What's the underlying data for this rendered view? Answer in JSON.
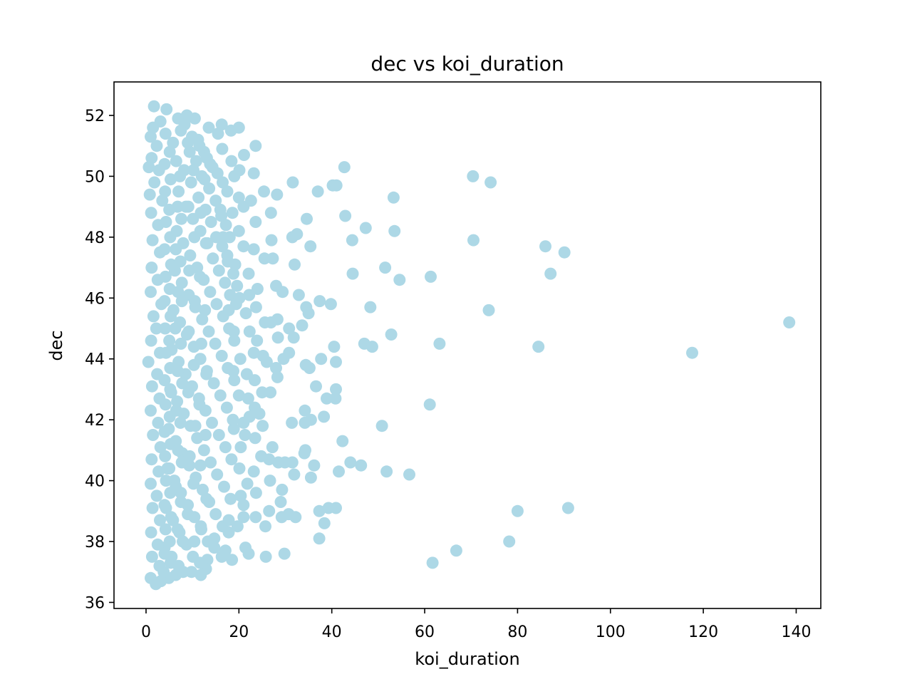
{
  "chart_data": {
    "type": "scatter",
    "title": "dec vs koi_duration",
    "xlabel": "koi_duration",
    "ylabel": "dec",
    "xlim": [
      -6.9,
      145.3
    ],
    "ylim": [
      35.8,
      53.1
    ],
    "xticks": [
      0,
      20,
      40,
      60,
      80,
      100,
      120,
      140
    ],
    "yticks": [
      36,
      38,
      40,
      42,
      44,
      46,
      48,
      50,
      52
    ],
    "grid": false,
    "legend": "none",
    "marker_color": "#add8e6",
    "points": [
      [
        1.7,
        52.3
      ],
      [
        4.4,
        52.2
      ],
      [
        8.8,
        52.0
      ],
      [
        10.5,
        51.9
      ],
      [
        13.5,
        51.6
      ],
      [
        16.3,
        51.7
      ],
      [
        20.0,
        51.6
      ],
      [
        18.3,
        51.5
      ],
      [
        15.5,
        51.4
      ],
      [
        3.1,
        51.8
      ],
      [
        1.0,
        51.3
      ],
      [
        0.6,
        50.3
      ],
      [
        0.8,
        49.4
      ],
      [
        23.6,
        51.0
      ],
      [
        21.1,
        50.7
      ],
      [
        16.4,
        50.9
      ],
      [
        18.4,
        50.5
      ],
      [
        20.1,
        50.2
      ],
      [
        23.2,
        50.1
      ],
      [
        19.0,
        50.0
      ],
      [
        13.8,
        50.4
      ],
      [
        42.7,
        50.3
      ],
      [
        31.6,
        49.8
      ],
      [
        37.0,
        49.5
      ],
      [
        40.2,
        49.7
      ],
      [
        41.0,
        49.7
      ],
      [
        53.3,
        49.3
      ],
      [
        70.4,
        50.0
      ],
      [
        74.2,
        49.8
      ],
      [
        28.2,
        49.4
      ],
      [
        25.4,
        49.5
      ],
      [
        22.6,
        49.2
      ],
      [
        20.0,
        49.3
      ],
      [
        21.0,
        49.0
      ],
      [
        18.6,
        48.8
      ],
      [
        16.0,
        48.9
      ],
      [
        26.9,
        48.8
      ],
      [
        34.6,
        48.6
      ],
      [
        42.9,
        48.7
      ],
      [
        47.3,
        48.3
      ],
      [
        53.5,
        48.2
      ],
      [
        23.6,
        48.5
      ],
      [
        20.0,
        48.2
      ],
      [
        16.6,
        48.0
      ],
      [
        27.0,
        47.9
      ],
      [
        31.5,
        48.0
      ],
      [
        32.5,
        48.1
      ],
      [
        35.4,
        47.7
      ],
      [
        44.4,
        47.9
      ],
      [
        70.5,
        47.9
      ],
      [
        86.0,
        47.7
      ],
      [
        90.1,
        47.5
      ],
      [
        21.0,
        47.7
      ],
      [
        23.2,
        47.6
      ],
      [
        25.5,
        47.3
      ],
      [
        27.3,
        47.3
      ],
      [
        32.0,
        47.1
      ],
      [
        17.5,
        47.4
      ],
      [
        19.2,
        47.1
      ],
      [
        22.1,
        46.8
      ],
      [
        44.5,
        46.8
      ],
      [
        51.5,
        47.0
      ],
      [
        54.6,
        46.6
      ],
      [
        61.3,
        46.7
      ],
      [
        87.1,
        46.8
      ],
      [
        28.0,
        46.4
      ],
      [
        29.4,
        46.2
      ],
      [
        24.0,
        46.3
      ],
      [
        22.2,
        46.1
      ],
      [
        20.1,
        46.0
      ],
      [
        32.9,
        46.1
      ],
      [
        37.4,
        45.9
      ],
      [
        34.5,
        45.7
      ],
      [
        39.8,
        45.8
      ],
      [
        48.3,
        45.7
      ],
      [
        35.0,
        45.5
      ],
      [
        28.3,
        45.3
      ],
      [
        23.7,
        45.7
      ],
      [
        21.5,
        45.5
      ],
      [
        17.8,
        45.6
      ],
      [
        73.8,
        45.6
      ],
      [
        138.5,
        45.2
      ],
      [
        25.6,
        45.2
      ],
      [
        26.9,
        45.2
      ],
      [
        33.6,
        45.1
      ],
      [
        30.8,
        45.0
      ],
      [
        18.9,
        44.9
      ],
      [
        22.3,
        44.9
      ],
      [
        23.9,
        44.6
      ],
      [
        28.4,
        44.7
      ],
      [
        31.8,
        44.7
      ],
      [
        52.8,
        44.8
      ],
      [
        47.0,
        44.5
      ],
      [
        48.7,
        44.4
      ],
      [
        63.2,
        44.5
      ],
      [
        84.5,
        44.4
      ],
      [
        117.6,
        44.2
      ],
      [
        40.5,
        44.4
      ],
      [
        30.8,
        44.2
      ],
      [
        29.6,
        44.0
      ],
      [
        25.2,
        44.1
      ],
      [
        26.0,
        43.9
      ],
      [
        23.2,
        44.2
      ],
      [
        20.3,
        44.0
      ],
      [
        37.7,
        44.0
      ],
      [
        40.9,
        43.9
      ],
      [
        34.4,
        43.8
      ],
      [
        35.2,
        43.7
      ],
      [
        28.0,
        43.7
      ],
      [
        28.3,
        43.4
      ],
      [
        21.7,
        43.5
      ],
      [
        23.4,
        43.3
      ],
      [
        18.8,
        43.6
      ],
      [
        36.6,
        43.1
      ],
      [
        40.9,
        43.0
      ],
      [
        25.0,
        42.9
      ],
      [
        26.8,
        42.9
      ],
      [
        20.0,
        42.8
      ],
      [
        22.0,
        42.7
      ],
      [
        38.9,
        42.7
      ],
      [
        40.8,
        42.7
      ],
      [
        61.1,
        42.5
      ],
      [
        23.4,
        42.4
      ],
      [
        34.2,
        42.3
      ],
      [
        24.4,
        42.2
      ],
      [
        38.3,
        42.1
      ],
      [
        22.3,
        42.1
      ],
      [
        21.0,
        41.9
      ],
      [
        31.4,
        41.9
      ],
      [
        34.2,
        41.9
      ],
      [
        35.5,
        42.0
      ],
      [
        50.8,
        41.8
      ],
      [
        25.1,
        41.8
      ],
      [
        18.9,
        41.7
      ],
      [
        42.3,
        41.3
      ],
      [
        21.3,
        41.5
      ],
      [
        23.5,
        41.4
      ],
      [
        27.2,
        41.1
      ],
      [
        20.4,
        41.1
      ],
      [
        34.1,
        40.9
      ],
      [
        34.3,
        41.0
      ],
      [
        24.8,
        40.8
      ],
      [
        26.5,
        40.7
      ],
      [
        28.5,
        40.6
      ],
      [
        29.9,
        40.6
      ],
      [
        31.5,
        40.6
      ],
      [
        44.0,
        40.6
      ],
      [
        46.3,
        40.5
      ],
      [
        36.2,
        40.5
      ],
      [
        20.1,
        40.4
      ],
      [
        23.2,
        40.3
      ],
      [
        41.5,
        40.3
      ],
      [
        51.8,
        40.3
      ],
      [
        56.7,
        40.2
      ],
      [
        31.9,
        40.2
      ],
      [
        35.5,
        40.1
      ],
      [
        26.7,
        40.0
      ],
      [
        21.8,
        39.9
      ],
      [
        23.7,
        39.6
      ],
      [
        29.3,
        39.7
      ],
      [
        20.4,
        39.5
      ],
      [
        29.0,
        39.3
      ],
      [
        21.0,
        39.2
      ],
      [
        80.0,
        39.0
      ],
      [
        90.9,
        39.1
      ],
      [
        39.3,
        39.1
      ],
      [
        40.9,
        39.1
      ],
      [
        37.3,
        39.0
      ],
      [
        26.5,
        39.0
      ],
      [
        30.7,
        38.9
      ],
      [
        32.2,
        38.8
      ],
      [
        29.2,
        38.8
      ],
      [
        23.6,
        38.8
      ],
      [
        21.0,
        38.8
      ],
      [
        38.4,
        38.6
      ],
      [
        25.7,
        38.5
      ],
      [
        19.7,
        38.5
      ],
      [
        17.8,
        38.3
      ],
      [
        37.3,
        38.1
      ],
      [
        78.2,
        38.0
      ],
      [
        14.7,
        38.1
      ],
      [
        21.4,
        37.8
      ],
      [
        66.8,
        37.7
      ],
      [
        61.7,
        37.3
      ],
      [
        17.1,
        37.7
      ],
      [
        22.1,
        37.6
      ],
      [
        25.8,
        37.5
      ],
      [
        29.8,
        37.6
      ],
      [
        16.3,
        37.5
      ],
      [
        18.5,
        37.4
      ],
      [
        13.2,
        37.4
      ],
      [
        12.9,
        37.1
      ],
      [
        11.8,
        36.9
      ],
      [
        9.8,
        37.0
      ],
      [
        8.0,
        37.0
      ],
      [
        6.4,
        36.9
      ],
      [
        4.9,
        36.8
      ],
      [
        3.2,
        36.7
      ],
      [
        2.1,
        36.6
      ],
      [
        1.0,
        36.8
      ],
      [
        6.9,
        51.9
      ],
      [
        8.3,
        51.7
      ],
      [
        9.9,
        51.3
      ],
      [
        11.2,
        51.2
      ],
      [
        12.5,
        50.8
      ],
      [
        13.1,
        50.6
      ],
      [
        14.3,
        50.3
      ],
      [
        15.4,
        50.1
      ],
      [
        16.5,
        49.8
      ],
      [
        17.5,
        49.5
      ],
      [
        7.5,
        51.5
      ],
      [
        5.8,
        51.1
      ],
      [
        9.4,
        50.8
      ],
      [
        10.8,
        50.5
      ],
      [
        12.0,
        50.0
      ],
      [
        13.6,
        49.6
      ],
      [
        15.0,
        49.2
      ],
      [
        16.2,
        48.7
      ],
      [
        17.2,
        48.4
      ],
      [
        18.0,
        48.0
      ],
      [
        8.2,
        50.2
      ],
      [
        9.7,
        49.8
      ],
      [
        11.3,
        49.3
      ],
      [
        12.8,
        48.9
      ],
      [
        14.0,
        48.5
      ],
      [
        15.1,
        48.0
      ],
      [
        16.4,
        47.7
      ],
      [
        17.6,
        47.2
      ],
      [
        18.8,
        46.8
      ],
      [
        19.6,
        46.4
      ],
      [
        7.0,
        49.5
      ],
      [
        8.6,
        49.0
      ],
      [
        10.1,
        48.6
      ],
      [
        11.7,
        48.2
      ],
      [
        13.2,
        47.8
      ],
      [
        14.4,
        47.3
      ],
      [
        15.7,
        46.9
      ],
      [
        17.0,
        46.5
      ],
      [
        18.1,
        46.1
      ],
      [
        19.4,
        45.8
      ],
      [
        6.6,
        48.2
      ],
      [
        8.0,
        47.8
      ],
      [
        9.5,
        47.4
      ],
      [
        11.0,
        47.0
      ],
      [
        12.4,
        46.6
      ],
      [
        13.8,
        46.2
      ],
      [
        15.2,
        45.8
      ],
      [
        16.6,
        45.4
      ],
      [
        17.9,
        45.0
      ],
      [
        19.0,
        44.6
      ],
      [
        6.2,
        46.9
      ],
      [
        7.7,
        46.5
      ],
      [
        9.2,
        46.1
      ],
      [
        10.6,
        45.7
      ],
      [
        12.1,
        45.3
      ],
      [
        13.5,
        44.9
      ],
      [
        14.9,
        44.5
      ],
      [
        16.3,
        44.1
      ],
      [
        17.6,
        43.7
      ],
      [
        19.0,
        43.3
      ],
      [
        5.9,
        45.6
      ],
      [
        7.3,
        45.2
      ],
      [
        8.8,
        44.8
      ],
      [
        10.3,
        44.4
      ],
      [
        11.7,
        44.0
      ],
      [
        13.1,
        43.6
      ],
      [
        14.6,
        43.2
      ],
      [
        16.0,
        42.8
      ],
      [
        17.4,
        42.4
      ],
      [
        18.7,
        42.0
      ],
      [
        5.5,
        44.3
      ],
      [
        7.0,
        43.9
      ],
      [
        8.5,
        43.5
      ],
      [
        9.9,
        43.1
      ],
      [
        11.4,
        42.7
      ],
      [
        12.8,
        42.3
      ],
      [
        14.2,
        41.9
      ],
      [
        15.7,
        41.5
      ],
      [
        17.1,
        41.1
      ],
      [
        18.4,
        40.7
      ],
      [
        5.2,
        43.0
      ],
      [
        6.7,
        42.6
      ],
      [
        8.1,
        42.2
      ],
      [
        9.6,
        41.8
      ],
      [
        11.0,
        41.4
      ],
      [
        12.5,
        41.0
      ],
      [
        13.9,
        40.6
      ],
      [
        15.3,
        40.2
      ],
      [
        16.8,
        39.8
      ],
      [
        18.2,
        39.4
      ],
      [
        4.9,
        41.7
      ],
      [
        6.4,
        41.3
      ],
      [
        7.8,
        40.9
      ],
      [
        9.3,
        40.5
      ],
      [
        10.7,
        40.1
      ],
      [
        12.2,
        39.7
      ],
      [
        13.6,
        39.3
      ],
      [
        15.0,
        38.9
      ],
      [
        16.5,
        38.5
      ],
      [
        17.8,
        38.7
      ],
      [
        4.6,
        40.4
      ],
      [
        6.1,
        40.0
      ],
      [
        7.5,
        39.6
      ],
      [
        9.0,
        39.2
      ],
      [
        10.4,
        38.8
      ],
      [
        11.9,
        38.4
      ],
      [
        13.3,
        38.0
      ],
      [
        14.7,
        37.8
      ],
      [
        4.3,
        39.1
      ],
      [
        5.8,
        38.7
      ],
      [
        7.2,
        38.3
      ],
      [
        8.7,
        37.9
      ],
      [
        10.1,
        37.5
      ],
      [
        11.6,
        37.3
      ],
      [
        4.0,
        37.8
      ],
      [
        5.5,
        37.5
      ],
      [
        7.0,
        37.2
      ],
      [
        3.8,
        37.0
      ],
      [
        1.5,
        51.6
      ],
      [
        2.3,
        51.0
      ],
      [
        1.2,
        50.6
      ],
      [
        2.8,
        50.2
      ],
      [
        1.8,
        49.8
      ],
      [
        3.5,
        49.2
      ],
      [
        1.1,
        48.8
      ],
      [
        2.6,
        48.4
      ],
      [
        1.4,
        47.9
      ],
      [
        3.0,
        47.5
      ],
      [
        1.2,
        47.0
      ],
      [
        2.5,
        46.6
      ],
      [
        1.0,
        46.2
      ],
      [
        3.3,
        45.8
      ],
      [
        1.6,
        45.4
      ],
      [
        2.2,
        45.0
      ],
      [
        1.1,
        44.6
      ],
      [
        3.0,
        44.2
      ],
      [
        0.5,
        43.9
      ],
      [
        2.4,
        43.5
      ],
      [
        1.3,
        43.1
      ],
      [
        2.9,
        42.7
      ],
      [
        1.0,
        42.3
      ],
      [
        2.6,
        41.9
      ],
      [
        1.5,
        41.5
      ],
      [
        3.1,
        41.1
      ],
      [
        1.2,
        40.7
      ],
      [
        2.7,
        40.3
      ],
      [
        1.0,
        39.9
      ],
      [
        2.3,
        39.5
      ],
      [
        1.4,
        39.1
      ],
      [
        3.0,
        38.7
      ],
      [
        1.1,
        38.3
      ],
      [
        2.5,
        37.9
      ],
      [
        1.3,
        37.5
      ],
      [
        2.9,
        37.2
      ],
      [
        4.2,
        51.4
      ],
      [
        5.1,
        50.8
      ],
      [
        4.0,
        50.4
      ],
      [
        5.3,
        49.9
      ],
      [
        4.1,
        49.5
      ],
      [
        5.0,
        48.9
      ],
      [
        4.3,
        48.5
      ],
      [
        5.2,
        48.0
      ],
      [
        4.0,
        47.6
      ],
      [
        5.4,
        47.1
      ],
      [
        4.2,
        46.7
      ],
      [
        5.1,
        46.3
      ],
      [
        4.0,
        45.9
      ],
      [
        5.3,
        45.4
      ],
      [
        4.1,
        45.0
      ],
      [
        5.0,
        44.6
      ],
      [
        4.3,
        44.2
      ],
      [
        5.2,
        43.7
      ],
      [
        4.0,
        43.3
      ],
      [
        5.4,
        42.9
      ],
      [
        4.2,
        42.5
      ],
      [
        5.1,
        42.1
      ],
      [
        4.0,
        41.6
      ],
      [
        5.3,
        41.2
      ],
      [
        4.1,
        40.8
      ],
      [
        5.0,
        40.4
      ],
      [
        4.3,
        40.0
      ],
      [
        5.2,
        39.6
      ],
      [
        4.0,
        39.2
      ],
      [
        5.4,
        38.8
      ],
      [
        4.2,
        38.4
      ],
      [
        5.1,
        38.0
      ],
      [
        4.0,
        37.6
      ],
      [
        5.3,
        37.3
      ],
      [
        6.5,
        50.5
      ],
      [
        7.3,
        50.0
      ],
      [
        6.8,
        49.0
      ],
      [
        7.6,
        48.6
      ],
      [
        6.4,
        47.6
      ],
      [
        7.4,
        47.2
      ],
      [
        6.9,
        46.2
      ],
      [
        7.7,
        45.9
      ],
      [
        6.3,
        45.0
      ],
      [
        7.5,
        44.5
      ],
      [
        6.8,
        43.6
      ],
      [
        7.8,
        43.2
      ],
      [
        6.5,
        42.3
      ],
      [
        7.4,
        41.9
      ],
      [
        6.9,
        41.0
      ],
      [
        7.7,
        40.6
      ],
      [
        6.4,
        39.8
      ],
      [
        7.5,
        39.3
      ],
      [
        6.8,
        38.4
      ],
      [
        7.9,
        38.0
      ],
      [
        9.0,
        51.1
      ],
      [
        10.2,
        50.2
      ],
      [
        9.1,
        49.0
      ],
      [
        10.4,
        48.0
      ],
      [
        9.3,
        46.9
      ],
      [
        10.5,
        45.9
      ],
      [
        9.2,
        44.9
      ],
      [
        10.3,
        43.8
      ],
      [
        9.1,
        42.9
      ],
      [
        10.6,
        41.8
      ],
      [
        9.4,
        40.8
      ],
      [
        10.2,
        39.9
      ],
      [
        9.0,
        38.9
      ],
      [
        10.4,
        38.0
      ],
      [
        11.5,
        51.0
      ],
      [
        12.6,
        49.9
      ],
      [
        11.8,
        48.8
      ],
      [
        12.9,
        47.8
      ],
      [
        11.6,
        46.7
      ],
      [
        12.7,
        45.6
      ],
      [
        11.9,
        44.5
      ],
      [
        13.0,
        43.5
      ],
      [
        11.5,
        42.5
      ],
      [
        12.8,
        41.5
      ],
      [
        11.7,
        40.5
      ],
      [
        13.0,
        39.4
      ],
      [
        11.8,
        38.5
      ]
    ]
  }
}
